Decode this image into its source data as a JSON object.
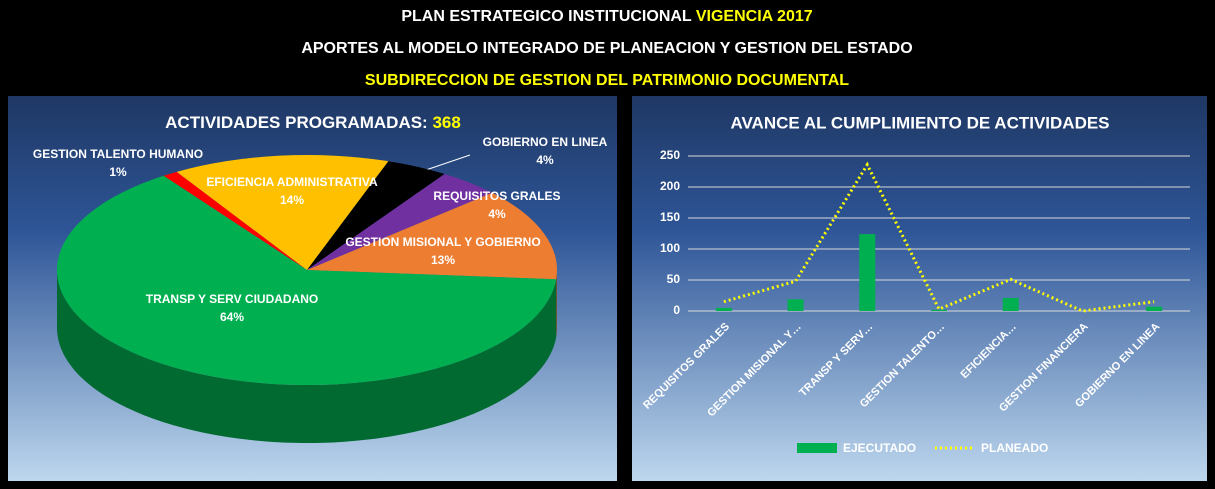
{
  "header": {
    "line1": "PLAN ESTRATEGICO INSTITUCIONAL",
    "line1_highlight": "VIGENCIA 2017",
    "line2": "APORTES AL MODELO INTEGRADO DE PLANEACION Y GESTION DEL ESTADO",
    "line3": "SUBDIRECCION DE GESTION DEL PATRIMONIO DOCUMENTAL"
  },
  "chart_data": [
    {
      "type": "pie",
      "title": "ACTIVIDADES PROGRAMADAS:",
      "total": 368,
      "categories": [
        "GESTION TALENTO HUMANO",
        "EFICIENCIA ADMINISTRATIVA",
        "GOBIERNO EN LINEA",
        "REQUISITOS GRALES",
        "GESTION MISIONAL Y GOBIERNO",
        "TRANSP Y SERV CIUDADANO"
      ],
      "values": [
        1,
        14,
        4,
        4,
        13,
        64
      ],
      "value_labels": [
        "1%",
        "14%",
        "4%",
        "4%",
        "13%",
        "64%"
      ],
      "colors": [
        "#ff0000",
        "#ffc000",
        "#000000",
        "#7030a0",
        "#ed7d31",
        "#00b050"
      ]
    },
    {
      "type": "bar",
      "title": "AVANCE AL CUMPLIMIENTO DE ACTIVIDADES",
      "categories": [
        "REQUISITOS GRALES",
        "GESTION MISIONAL Y…",
        "TRANSP Y SERV…",
        "GESTION TALENTO…",
        "EFICIENCIA…",
        "GESTION FINANCIERA",
        "GOBIERNO EN LINEA"
      ],
      "series": [
        {
          "name": "EJECUTADO",
          "type": "bar",
          "color": "#00b050",
          "values": [
            5,
            19,
            124,
            2,
            21,
            0,
            7
          ]
        },
        {
          "name": "PLANEADO",
          "type": "line",
          "color": "#ffff00",
          "values": [
            15,
            48,
            236,
            3,
            51,
            0,
            15
          ]
        }
      ],
      "ylim": [
        0,
        250
      ],
      "yticks": [
        0,
        50,
        100,
        150,
        200,
        250
      ],
      "grid": true,
      "legend": "bottom"
    }
  ]
}
